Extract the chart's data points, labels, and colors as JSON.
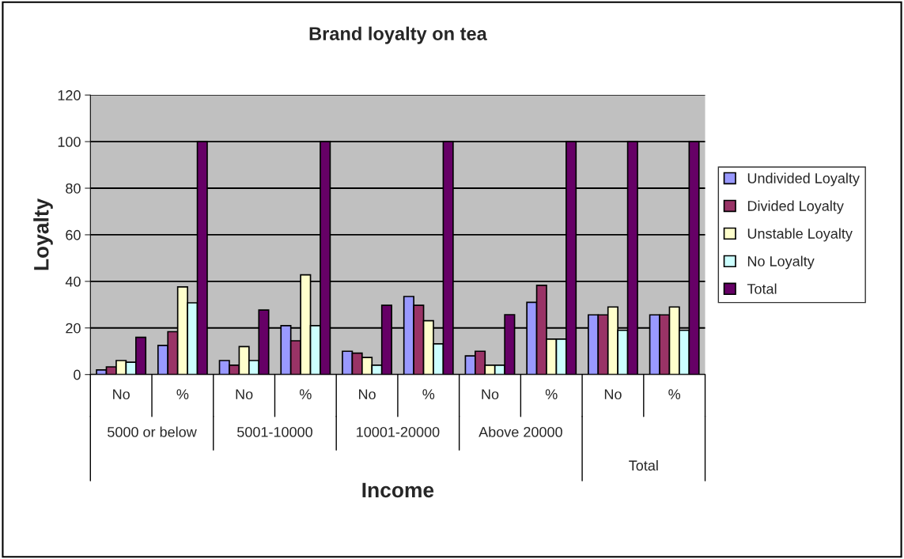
{
  "chart_data": {
    "type": "bar",
    "title": "Brand loyalty on tea",
    "xlabel": "Income",
    "ylabel": "Loyalty",
    "categories": [
      "No",
      "%",
      "No",
      "%",
      "No",
      "%",
      "No",
      "%",
      "No",
      "%"
    ],
    "annotations": [
      "5000 or below",
      "5001-10000",
      "10001-20000",
      "Above 20000",
      "Total"
    ],
    "series": [
      {
        "name": "Undivided Loyalty",
        "color": "#9999ff",
        "values": [
          2,
          12.5,
          6,
          21,
          10,
          33.5,
          8,
          31,
          25.6,
          25.6
        ]
      },
      {
        "name": "Divided Loyalty",
        "color": "#993366",
        "values": [
          3.3,
          18.4,
          4,
          14.5,
          9.2,
          29.7,
          10,
          38.3,
          25.6,
          25.6
        ]
      },
      {
        "name": "Unstable Loyalty",
        "color": "#ffffcc",
        "values": [
          6,
          37.6,
          12,
          42.8,
          7.3,
          23.1,
          4,
          15.2,
          29,
          29
        ]
      },
      {
        "name": "No Loyalty",
        "color": "#ccffff",
        "values": [
          5.3,
          30.8,
          6,
          21,
          4,
          13.2,
          4,
          15.2,
          19,
          19
        ]
      },
      {
        "name": "Total",
        "color": "#660066",
        "values": [
          16,
          100,
          27.7,
          100,
          29.7,
          100,
          25.7,
          100,
          100,
          100
        ]
      }
    ],
    "ylim": [
      0,
      120
    ],
    "yticks": [
      0,
      20,
      40,
      60,
      80,
      100,
      120
    ],
    "grid": "y",
    "legend": "right"
  }
}
